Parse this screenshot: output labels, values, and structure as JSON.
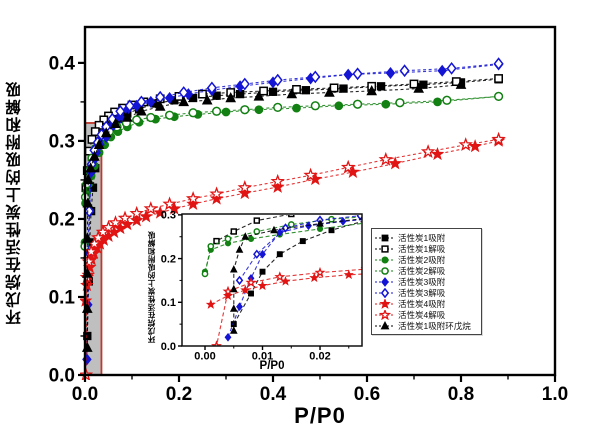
{
  "chart_data": {
    "type": "scatter",
    "title": "",
    "xlabel": "P/P0",
    "ylabel": "环戊烷在活性炭上的吸附和解吸",
    "xlim": [
      0,
      1.0
    ],
    "ylim": [
      0,
      0.446
    ],
    "grid": false,
    "legend_position": "inside-right-center",
    "xticks": {
      "values": [
        0,
        0.2,
        0.4,
        0.6,
        0.8,
        1.0
      ],
      "labels": [
        "0.0",
        "0.2",
        "0.4",
        "0.6",
        "0.8",
        "1.0"
      ]
    },
    "yticks": {
      "values": [
        0,
        0.1,
        0.2,
        0.3,
        0.4
      ],
      "labels": [
        "0.0",
        "0.1",
        "0.2",
        "0.3",
        "0.4"
      ]
    },
    "highlight_box": {
      "x0": 0,
      "x1": 0.035,
      "y0": 0,
      "y1": 0.323,
      "fill": "#bcbcbc",
      "border": "#c0392b"
    },
    "series": [
      {
        "id": "ac1-adsorption",
        "name": "活性炭1吸附",
        "marker": "square",
        "fill": "filled",
        "color": "#000000",
        "icon": "filled-square-icon",
        "points": [
          [
            0.005,
            0.05
          ],
          [
            0.008,
            0.12
          ],
          [
            0.01,
            0.17
          ],
          [
            0.013,
            0.21
          ],
          [
            0.017,
            0.24
          ],
          [
            0.022,
            0.265
          ],
          [
            0.03,
            0.295
          ],
          [
            0.04,
            0.31
          ],
          [
            0.055,
            0.32
          ],
          [
            0.07,
            0.328
          ],
          [
            0.09,
            0.335
          ],
          [
            0.115,
            0.341
          ],
          [
            0.15,
            0.348
          ],
          [
            0.19,
            0.352
          ],
          [
            0.23,
            0.355
          ],
          [
            0.28,
            0.358
          ],
          [
            0.33,
            0.36
          ],
          [
            0.4,
            0.363
          ],
          [
            0.47,
            0.365
          ],
          [
            0.55,
            0.367
          ],
          [
            0.63,
            0.37
          ],
          [
            0.72,
            0.372
          ],
          [
            0.8,
            0.375
          ],
          [
            0.88,
            0.379
          ]
        ]
      },
      {
        "id": "ac1-desorption",
        "name": "活性炭1解吸",
        "marker": "square",
        "fill": "open",
        "color": "#000000",
        "icon": "open-square-icon",
        "points": [
          [
            0.88,
            0.38
          ],
          [
            0.79,
            0.376
          ],
          [
            0.7,
            0.373
          ],
          [
            0.61,
            0.37
          ],
          [
            0.53,
            0.368
          ],
          [
            0.45,
            0.366
          ],
          [
            0.38,
            0.364
          ],
          [
            0.31,
            0.362
          ],
          [
            0.25,
            0.36
          ],
          [
            0.2,
            0.357
          ],
          [
            0.16,
            0.354
          ],
          [
            0.125,
            0.35
          ],
          [
            0.1,
            0.346
          ],
          [
            0.08,
            0.342
          ],
          [
            0.063,
            0.337
          ],
          [
            0.05,
            0.332
          ],
          [
            0.04,
            0.327
          ],
          [
            0.03,
            0.32
          ],
          [
            0.022,
            0.312
          ],
          [
            0.015,
            0.302
          ],
          [
            0.009,
            0.287
          ],
          [
            0.005,
            0.262
          ],
          [
            0.002,
            0.24
          ]
        ]
      },
      {
        "id": "ac2-adsorption",
        "name": "活性炭2吸附",
        "marker": "circle",
        "fill": "filled",
        "color": "#128012",
        "icon": "filled-circle-icon",
        "points": [
          [
            0.0,
            0.17
          ],
          [
            0.001,
            0.22
          ],
          [
            0.004,
            0.235
          ],
          [
            0.008,
            0.245
          ],
          [
            0.013,
            0.255
          ],
          [
            0.02,
            0.268
          ],
          [
            0.03,
            0.285
          ],
          [
            0.042,
            0.295
          ],
          [
            0.055,
            0.305
          ],
          [
            0.07,
            0.312
          ],
          [
            0.09,
            0.318
          ],
          [
            0.115,
            0.324
          ],
          [
            0.15,
            0.328
          ],
          [
            0.19,
            0.331
          ],
          [
            0.24,
            0.334
          ],
          [
            0.3,
            0.337
          ],
          [
            0.37,
            0.34
          ],
          [
            0.45,
            0.342
          ],
          [
            0.54,
            0.345
          ],
          [
            0.64,
            0.347
          ],
          [
            0.75,
            0.35
          ],
          [
            0.88,
            0.357
          ]
        ]
      },
      {
        "id": "ac2-desorption",
        "name": "活性炭2解吸",
        "marker": "circle",
        "fill": "open",
        "color": "#128012",
        "icon": "open-circle-icon",
        "points": [
          [
            0.88,
            0.357
          ],
          [
            0.77,
            0.352
          ],
          [
            0.67,
            0.349
          ],
          [
            0.58,
            0.347
          ],
          [
            0.49,
            0.345
          ],
          [
            0.41,
            0.343
          ],
          [
            0.34,
            0.34
          ],
          [
            0.28,
            0.338
          ],
          [
            0.23,
            0.336
          ],
          [
            0.18,
            0.333
          ],
          [
            0.14,
            0.33
          ],
          [
            0.11,
            0.327
          ],
          [
            0.088,
            0.323
          ],
          [
            0.068,
            0.318
          ],
          [
            0.052,
            0.312
          ],
          [
            0.04,
            0.305
          ],
          [
            0.03,
            0.298
          ],
          [
            0.022,
            0.29
          ],
          [
            0.015,
            0.278
          ],
          [
            0.009,
            0.262
          ],
          [
            0.004,
            0.245
          ],
          [
            0.001,
            0.228
          ],
          [
            0.0,
            0.165
          ]
        ]
      },
      {
        "id": "ac3-adsorption",
        "name": "活性炭3吸附",
        "marker": "diamond",
        "fill": "filled",
        "color": "#1414d4",
        "icon": "filled-diamond-icon",
        "points": [
          [
            0.004,
            0.02
          ],
          [
            0.006,
            0.09
          ],
          [
            0.008,
            0.155
          ],
          [
            0.01,
            0.21
          ],
          [
            0.013,
            0.26
          ],
          [
            0.018,
            0.275
          ],
          [
            0.024,
            0.285
          ],
          [
            0.032,
            0.295
          ],
          [
            0.045,
            0.305
          ],
          [
            0.06,
            0.32
          ],
          [
            0.075,
            0.33
          ],
          [
            0.09,
            0.34
          ],
          [
            0.11,
            0.345
          ],
          [
            0.14,
            0.35
          ],
          [
            0.18,
            0.355
          ],
          [
            0.22,
            0.36
          ],
          [
            0.27,
            0.365
          ],
          [
            0.33,
            0.37
          ],
          [
            0.4,
            0.375
          ],
          [
            0.48,
            0.38
          ],
          [
            0.56,
            0.385
          ],
          [
            0.65,
            0.387
          ],
          [
            0.76,
            0.39
          ],
          [
            0.88,
            0.398
          ]
        ]
      },
      {
        "id": "ac3-desorption",
        "name": "活性炭3解吸",
        "marker": "diamond",
        "fill": "open",
        "color": "#1414d4",
        "icon": "open-diamond-icon",
        "points": [
          [
            0.88,
            0.399
          ],
          [
            0.78,
            0.393
          ],
          [
            0.68,
            0.39
          ],
          [
            0.58,
            0.386
          ],
          [
            0.49,
            0.382
          ],
          [
            0.41,
            0.378
          ],
          [
            0.34,
            0.373
          ],
          [
            0.27,
            0.368
          ],
          [
            0.21,
            0.362
          ],
          [
            0.16,
            0.356
          ],
          [
            0.12,
            0.35
          ],
          [
            0.095,
            0.345
          ],
          [
            0.075,
            0.338
          ],
          [
            0.058,
            0.328
          ],
          [
            0.045,
            0.318
          ],
          [
            0.035,
            0.308
          ],
          [
            0.027,
            0.298
          ],
          [
            0.02,
            0.288
          ],
          [
            0.014,
            0.27
          ],
          [
            0.009,
            0.21
          ],
          [
            0.006,
            0.15
          ]
        ]
      },
      {
        "id": "ac4-adsorption",
        "name": "活性炭4吸附",
        "marker": "star",
        "fill": "filled",
        "color": "#e11414",
        "icon": "filled-star-icon",
        "points": [
          [
            0.001,
            0.095
          ],
          [
            0.004,
            0.115
          ],
          [
            0.007,
            0.128
          ],
          [
            0.01,
            0.138
          ],
          [
            0.014,
            0.148
          ],
          [
            0.019,
            0.156
          ],
          [
            0.025,
            0.163
          ],
          [
            0.032,
            0.168
          ],
          [
            0.04,
            0.173
          ],
          [
            0.05,
            0.178
          ],
          [
            0.062,
            0.183
          ],
          [
            0.075,
            0.188
          ],
          [
            0.09,
            0.193
          ],
          [
            0.11,
            0.198
          ],
          [
            0.13,
            0.203
          ],
          [
            0.16,
            0.208
          ],
          [
            0.19,
            0.213
          ],
          [
            0.23,
            0.219
          ],
          [
            0.28,
            0.226
          ],
          [
            0.34,
            0.233
          ],
          [
            0.41,
            0.241
          ],
          [
            0.49,
            0.251
          ],
          [
            0.57,
            0.26
          ],
          [
            0.66,
            0.271
          ],
          [
            0.75,
            0.283
          ],
          [
            0.83,
            0.293
          ],
          [
            0.88,
            0.3
          ]
        ]
      },
      {
        "id": "ac4-desorption",
        "name": "活性炭4解吸",
        "marker": "star",
        "fill": "open",
        "color": "#e11414",
        "icon": "open-star-icon",
        "points": [
          [
            0.88,
            0.302
          ],
          [
            0.81,
            0.295
          ],
          [
            0.73,
            0.286
          ],
          [
            0.64,
            0.276
          ],
          [
            0.56,
            0.266
          ],
          [
            0.48,
            0.256
          ],
          [
            0.41,
            0.248
          ],
          [
            0.34,
            0.24
          ],
          [
            0.28,
            0.232
          ],
          [
            0.23,
            0.226
          ],
          [
            0.18,
            0.219
          ],
          [
            0.14,
            0.213
          ],
          [
            0.11,
            0.207
          ],
          [
            0.085,
            0.201
          ],
          [
            0.065,
            0.195
          ],
          [
            0.05,
            0.189
          ],
          [
            0.038,
            0.183
          ],
          [
            0.028,
            0.176
          ],
          [
            0.02,
            0.168
          ],
          [
            0.013,
            0.158
          ],
          [
            0.008,
            0.145
          ],
          [
            0.004,
            0.125
          ],
          [
            0.002,
            0.0
          ]
        ]
      },
      {
        "id": "ac1-cyclopentane-adsorption",
        "name": "活性炭1吸附环戊烷",
        "marker": "triangle",
        "fill": "filled",
        "color": "#000000",
        "icon": "filled-triangle-icon",
        "points": [
          [
            0.005,
            0.035
          ],
          [
            0.005,
            0.085
          ],
          [
            0.005,
            0.13
          ],
          [
            0.005,
            0.175
          ],
          [
            0.006,
            0.22
          ],
          [
            0.007,
            0.25
          ],
          [
            0.012,
            0.265
          ],
          [
            0.02,
            0.28
          ],
          [
            0.03,
            0.295
          ],
          [
            0.045,
            0.31
          ],
          [
            0.065,
            0.322
          ],
          [
            0.09,
            0.33
          ],
          [
            0.12,
            0.338
          ],
          [
            0.16,
            0.344
          ],
          [
            0.21,
            0.35
          ],
          [
            0.26,
            0.352
          ],
          [
            0.31,
            0.355
          ],
          [
            0.37,
            0.357
          ],
          [
            0.44,
            0.36
          ],
          [
            0.52,
            0.362
          ],
          [
            0.61,
            0.364
          ],
          [
            0.71,
            0.367
          ],
          [
            0.8,
            0.372
          ]
        ]
      }
    ],
    "inset": {
      "xlabel": "P/P0",
      "ylabel": "环戊烷在活性炭上的吸附和解吸",
      "xlim": [
        -0.004,
        0.0273
      ],
      "ylim": [
        0,
        0.302
      ],
      "xticks": {
        "values": [
          0,
          0.01,
          0.02
        ],
        "labels": [
          "0.00",
          "0.01",
          "0.02"
        ]
      },
      "yticks": {
        "values": [
          0,
          0.1,
          0.2,
          0.3
        ],
        "labels": [
          "0.0",
          "0.1",
          "0.2",
          "0.3"
        ]
      }
    }
  }
}
